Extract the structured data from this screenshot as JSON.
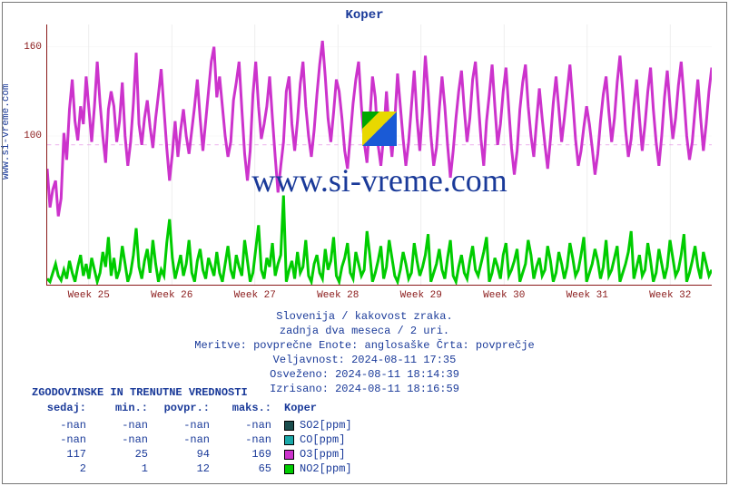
{
  "title": "Koper",
  "ylabel": "www.si-vreme.com",
  "watermark_text": "www.si-vreme.com",
  "plot": {
    "ymin": 0,
    "ymax": 175,
    "yticks": [
      100,
      160
    ],
    "xticks": [
      "Week 25",
      "Week 26",
      "Week 27",
      "Week 28",
      "Week 29",
      "Week 30",
      "Week 31",
      "Week 32"
    ],
    "grid_color": "#e8e8e8",
    "axis_color": "#8a1a1a",
    "reference_line": {
      "y": 94,
      "color": "#e080e0",
      "dash": "3,3"
    },
    "series": [
      {
        "name": "O3",
        "color": "#cc33cc",
        "width": 1,
        "values": [
          78,
          52,
          64,
          70,
          46,
          58,
          102,
          84,
          118,
          138,
          110,
          97,
          120,
          108,
          140,
          118,
          96,
          120,
          150,
          122,
          100,
          82,
          118,
          130,
          120,
          96,
          110,
          136,
          100,
          80,
          96,
          122,
          156,
          108,
          94,
          112,
          124,
          106,
          92,
          112,
          128,
          145,
          118,
          92,
          70,
          88,
          110,
          86,
          104,
          118,
          100,
          88,
          104,
          120,
          138,
          112,
          90,
          110,
          130,
          150,
          160,
          126,
          140,
          120,
          100,
          86,
          96,
          124,
          136,
          150,
          118,
          88,
          70,
          90,
          128,
          150,
          120,
          98,
          108,
          120,
          140,
          112,
          86,
          62,
          80,
          96,
          130,
          140,
          108,
          90,
          110,
          135,
          150,
          120,
          100,
          86,
          104,
          128,
          148,
          164,
          140,
          112,
          96,
          116,
          138,
          130,
          112,
          90,
          78,
          100,
          122,
          138,
          150,
          120,
          96,
          82,
          110,
          140,
          126,
          94,
          80,
          100,
          130,
          104,
          86,
          110,
          142,
          120,
          98,
          80,
          96,
          120,
          144,
          112,
          90,
          118,
          154,
          130,
          100,
          80,
          92,
          118,
          140,
          120,
          94,
          72,
          90,
          112,
          130,
          144,
          118,
          96,
          112,
          138,
          150,
          124,
          98,
          80,
          110,
          128,
          148,
          120,
          94,
          108,
          130,
          146,
          118,
          92,
          74,
          90,
          118,
          136,
          148,
          120,
          100,
          86,
          110,
          132,
          112,
          94,
          78,
          98,
          122,
          140,
          118,
          96,
          112,
          130,
          148,
          124,
          98,
          80,
          90,
          106,
          120,
          108,
          92,
          74,
          88,
          110,
          128,
          140,
          116,
          96,
          112,
          136,
          154,
          130,
          104,
          86,
          98,
          120,
          138,
          112,
          90,
          108,
          130,
          146,
          118,
          96,
          80,
          100,
          126,
          144,
          120,
          98,
          112,
          134,
          150,
          126,
          100,
          84,
          96,
          118,
          138,
          112,
          90,
          108,
          130,
          146
        ]
      },
      {
        "name": "NO2",
        "color": "#00cc00",
        "width": 1,
        "values": [
          4,
          2,
          8,
          14,
          6,
          3,
          10,
          4,
          16,
          8,
          2,
          12,
          20,
          6,
          14,
          4,
          18,
          10,
          2,
          8,
          22,
          12,
          32,
          6,
          18,
          4,
          10,
          26,
          14,
          2,
          8,
          20,
          38,
          12,
          4,
          16,
          24,
          8,
          30,
          14,
          2,
          10,
          6,
          28,
          44,
          18,
          4,
          12,
          20,
          6,
          14,
          30,
          8,
          2,
          16,
          24,
          10,
          4,
          18,
          12,
          6,
          22,
          8,
          2,
          14,
          26,
          10,
          4,
          20,
          12,
          6,
          30,
          16,
          2,
          8,
          24,
          40,
          10,
          4,
          18,
          12,
          28,
          6,
          14,
          20,
          60,
          2,
          10,
          16,
          4,
          22,
          8,
          12,
          30,
          6,
          2,
          14,
          20,
          8,
          4,
          24,
          10,
          16,
          32,
          6,
          2,
          12,
          18,
          28,
          8,
          4,
          22,
          14,
          6,
          10,
          36,
          20,
          2,
          8,
          16,
          26,
          4,
          12,
          30,
          18,
          6,
          2,
          10,
          22,
          14,
          4,
          8,
          28,
          16,
          6,
          12,
          20,
          34,
          2,
          8,
          14,
          24,
          10,
          4,
          18,
          30,
          6,
          2,
          12,
          20,
          8,
          4,
          16,
          26,
          10,
          6,
          14,
          22,
          32,
          2,
          8,
          18,
          12,
          4,
          20,
          28,
          6,
          10,
          16,
          24,
          2,
          8,
          14,
          30,
          20,
          4,
          12,
          18,
          6,
          10,
          26,
          16,
          2,
          8,
          22,
          14,
          4,
          12,
          28,
          18,
          6,
          10,
          20,
          32,
          2,
          8,
          14,
          24,
          16,
          4,
          12,
          30,
          6,
          10,
          18,
          26,
          2,
          8,
          14,
          22,
          36,
          4,
          12,
          20,
          6,
          10,
          28,
          16,
          2,
          8,
          24,
          14,
          4,
          12,
          30,
          18,
          6,
          10,
          20,
          34,
          2,
          8,
          16,
          26,
          12,
          4,
          22,
          14,
          6,
          10
        ]
      }
    ]
  },
  "captions": [
    "Slovenija / kakovost zraka.",
    "zadnja dva meseca / 2 uri.",
    "Meritve: povprečne  Enote: anglosaške  Črta: povprečje",
    "Veljavnost: 2024-08-11 17:35",
    "Osveženo: 2024-08-11 18:14:39",
    "Izrisano: 2024-08-11 18:16:59"
  ],
  "legend": {
    "title": "ZGODOVINSKE IN TRENUTNE VREDNOSTI",
    "col_headers": [
      "sedaj:",
      "min.:",
      "povpr.:",
      "maks.:"
    ],
    "label_header": "Koper",
    "rows": [
      {
        "vals": [
          "-nan",
          "-nan",
          "-nan",
          "-nan"
        ],
        "color": "#1a4d4d",
        "label": "SO2[ppm]"
      },
      {
        "vals": [
          "-nan",
          "-nan",
          "-nan",
          "-nan"
        ],
        "color": "#1aa8a8",
        "label": "CO[ppm]"
      },
      {
        "vals": [
          "117",
          "25",
          "94",
          "169"
        ],
        "color": "#cc33cc",
        "label": "O3[ppm]"
      },
      {
        "vals": [
          "2",
          "1",
          "12",
          "65"
        ],
        "color": "#00cc00",
        "label": "NO2[ppm]"
      }
    ]
  }
}
